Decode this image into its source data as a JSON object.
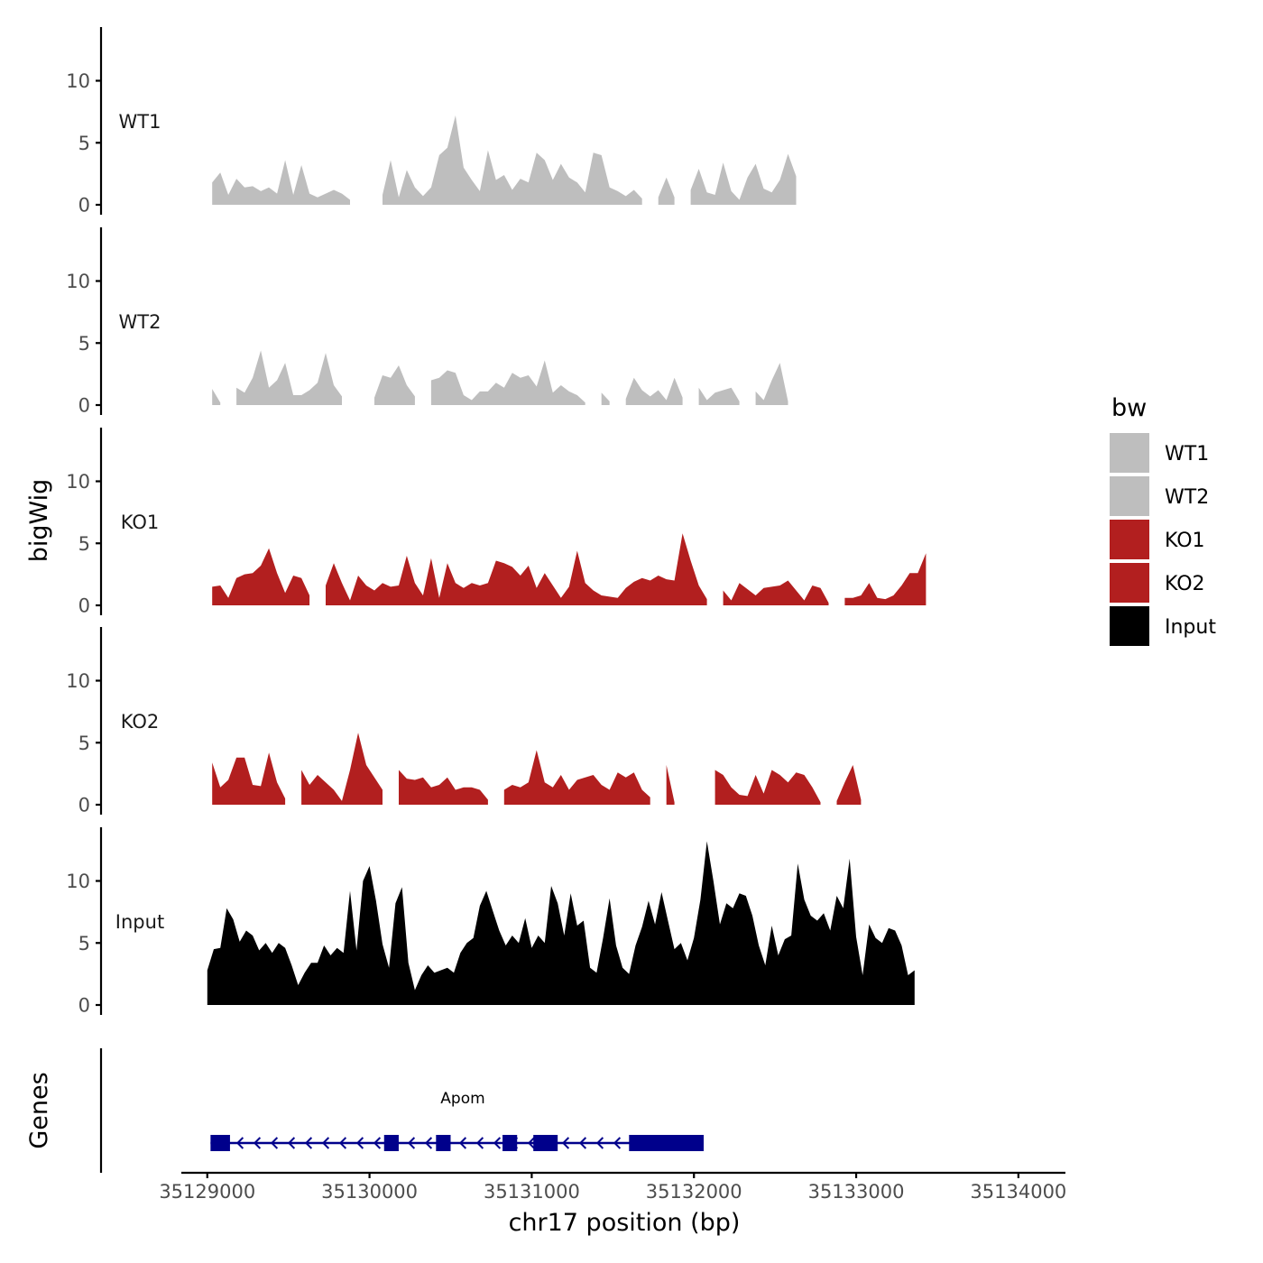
{
  "chart_data": {
    "type": "area",
    "chrom_label": "chr17 position (bp)",
    "ylabel": "bigWig",
    "genes_label": "Genes",
    "xlim": [
      35128840,
      35134290
    ],
    "ylim": [
      0,
      14
    ],
    "y_ticks": [
      0,
      5,
      10
    ],
    "x_ticks": [
      35129000,
      35130000,
      35131000,
      35132000,
      35133000,
      35134000
    ],
    "x_tick_labels": [
      "35129000",
      "35130000",
      "35131000",
      "35132000",
      "35133000",
      "35134000"
    ],
    "legend": {
      "title": "bw",
      "entries": [
        {
          "label": "WT1",
          "color": "#bebebe"
        },
        {
          "label": "WT2",
          "color": "#bebebe"
        },
        {
          "label": "KO1",
          "color": "#b21f1f"
        },
        {
          "label": "KO2",
          "color": "#b21f1f"
        },
        {
          "label": "Input",
          "color": "#000000"
        }
      ]
    },
    "series": [
      {
        "name": "WT1",
        "color": "#bebebe",
        "start": 35129030,
        "step": 50,
        "values": [
          1.8,
          2.6,
          0.8,
          2.1,
          1.4,
          1.5,
          1.1,
          1.4,
          0.9,
          3.6,
          0.8,
          3.2,
          0.9,
          0.6,
          0.9,
          1.2,
          0.9,
          0.4,
          null,
          null,
          null,
          0.8,
          3.6,
          0.6,
          2.8,
          1.4,
          0.7,
          1.4,
          4.0,
          4.6,
          7.2,
          3.0,
          2.0,
          1.1,
          4.4,
          2.0,
          2.4,
          1.2,
          2.1,
          1.8,
          4.2,
          3.6,
          2.0,
          3.3,
          2.2,
          1.8,
          1.0,
          4.2,
          4.0,
          1.4,
          1.1,
          0.7,
          1.2,
          0.5,
          null,
          0.6,
          2.2,
          0.6,
          null,
          1.2,
          2.9,
          1.0,
          0.8,
          3.4,
          1.1,
          0.4,
          2.2,
          3.3,
          1.3,
          1.0,
          2.0,
          4.1,
          2.3
        ]
      },
      {
        "name": "WT2",
        "color": "#bebebe",
        "start": 35129030,
        "step": 50,
        "values": [
          1.3,
          0.2,
          null,
          1.4,
          1.0,
          2.2,
          4.4,
          1.4,
          2.0,
          3.4,
          0.8,
          0.8,
          1.2,
          1.8,
          4.2,
          1.6,
          0.7,
          null,
          null,
          null,
          0.6,
          2.4,
          2.2,
          3.2,
          1.6,
          0.7,
          null,
          2.0,
          2.2,
          2.8,
          2.6,
          0.8,
          0.4,
          1.1,
          1.1,
          1.8,
          1.4,
          2.6,
          2.2,
          2.4,
          1.5,
          3.6,
          1.0,
          1.6,
          1.1,
          0.8,
          0.2,
          null,
          1.0,
          0.3,
          null,
          0.5,
          2.2,
          1.2,
          0.7,
          1.2,
          0.4,
          2.2,
          0.6,
          null,
          1.4,
          0.4,
          1.0,
          1.2,
          1.4,
          0.3,
          null,
          1.1,
          0.4,
          2.0,
          3.4,
          0.3
        ]
      },
      {
        "name": "KO1",
        "color": "#b21f1f",
        "start": 35129030,
        "step": 50,
        "values": [
          1.5,
          1.6,
          0.6,
          2.2,
          2.5,
          2.6,
          3.2,
          4.6,
          2.6,
          1.0,
          2.4,
          2.2,
          0.8,
          null,
          1.6,
          3.4,
          1.8,
          0.4,
          2.4,
          1.6,
          1.2,
          1.8,
          1.5,
          1.6,
          4.0,
          1.8,
          0.8,
          3.8,
          0.6,
          3.4,
          1.8,
          1.4,
          1.8,
          1.6,
          1.8,
          3.6,
          3.4,
          3.1,
          2.4,
          3.2,
          1.4,
          2.6,
          1.6,
          0.6,
          1.5,
          4.4,
          1.8,
          1.2,
          0.8,
          0.7,
          0.6,
          1.4,
          1.9,
          2.2,
          2.0,
          2.4,
          2.1,
          2.0,
          5.8,
          3.6,
          1.6,
          0.5,
          null,
          1.2,
          0.4,
          1.8,
          1.3,
          0.8,
          1.4,
          1.5,
          1.6,
          2.0,
          1.2,
          0.4,
          1.6,
          1.4,
          0.2,
          null,
          0.6,
          0.6,
          0.8,
          1.8,
          0.6,
          0.5,
          0.8,
          1.6,
          2.6,
          2.6,
          4.2
        ]
      },
      {
        "name": "KO2",
        "color": "#b21f1f",
        "start": 35129030,
        "step": 50,
        "values": [
          3.4,
          1.4,
          2.0,
          3.8,
          3.8,
          1.6,
          1.5,
          4.2,
          1.8,
          0.5,
          null,
          2.8,
          1.6,
          2.4,
          1.8,
          1.2,
          0.3,
          2.8,
          5.8,
          3.2,
          2.2,
          1.2,
          null,
          2.8,
          2.1,
          2.0,
          2.2,
          1.4,
          1.6,
          2.2,
          1.2,
          1.4,
          1.4,
          1.2,
          0.4,
          null,
          1.2,
          1.6,
          1.4,
          1.8,
          4.4,
          1.8,
          1.4,
          2.4,
          1.2,
          2.0,
          2.2,
          2.4,
          1.6,
          1.2,
          2.6,
          2.2,
          2.6,
          1.2,
          0.6,
          null,
          3.2,
          0.2,
          null,
          null,
          null,
          null,
          2.8,
          2.4,
          1.4,
          0.8,
          0.7,
          2.4,
          0.9,
          2.8,
          2.4,
          1.8,
          2.6,
          2.4,
          1.4,
          0.2,
          null,
          0.3,
          1.8,
          3.2,
          0.4
        ]
      },
      {
        "name": "Input",
        "color": "#000000",
        "start": 35129000,
        "step": 40,
        "values": [
          2.8,
          4.5,
          4.6,
          7.8,
          6.9,
          5.1,
          6.0,
          5.6,
          4.4,
          5.0,
          4.2,
          5.0,
          4.6,
          3.2,
          1.6,
          2.6,
          3.4,
          3.4,
          4.8,
          4.0,
          4.6,
          4.2,
          9.2,
          4.4,
          10.0,
          11.2,
          8.4,
          4.9,
          3.0,
          8.2,
          9.5,
          3.4,
          1.2,
          2.4,
          3.2,
          2.6,
          2.8,
          3.0,
          2.6,
          4.2,
          5.0,
          5.4,
          8.0,
          9.2,
          7.6,
          6.0,
          4.8,
          5.6,
          5.0,
          7.0,
          4.6,
          5.6,
          5.0,
          9.6,
          8.2,
          5.6,
          9.0,
          6.4,
          6.8,
          3.0,
          2.6,
          5.4,
          8.6,
          4.8,
          3.0,
          2.5,
          4.8,
          6.3,
          8.4,
          6.5,
          9.1,
          6.8,
          4.5,
          5.0,
          3.6,
          5.4,
          8.5,
          13.2,
          10.0,
          6.5,
          8.2,
          7.8,
          9.0,
          8.8,
          7.2,
          4.8,
          3.2,
          6.4,
          4.0,
          5.3,
          5.6,
          11.4,
          8.5,
          7.2,
          6.8,
          7.4,
          6.0,
          8.8,
          7.8,
          11.8,
          5.5,
          2.4,
          6.5,
          5.4,
          5.0,
          6.2,
          6.0,
          4.8,
          2.4,
          2.8
        ]
      }
    ],
    "genes": [
      {
        "name": "Apom",
        "color": "#00008b",
        "strand": "-",
        "start": 35129020,
        "end": 35132060,
        "exons": [
          [
            35129020,
            35129140
          ],
          [
            35130090,
            35130180
          ],
          [
            35130410,
            35130500
          ],
          [
            35130820,
            35130910
          ],
          [
            35131010,
            35131160
          ],
          [
            35131600,
            35132060
          ]
        ]
      }
    ]
  }
}
